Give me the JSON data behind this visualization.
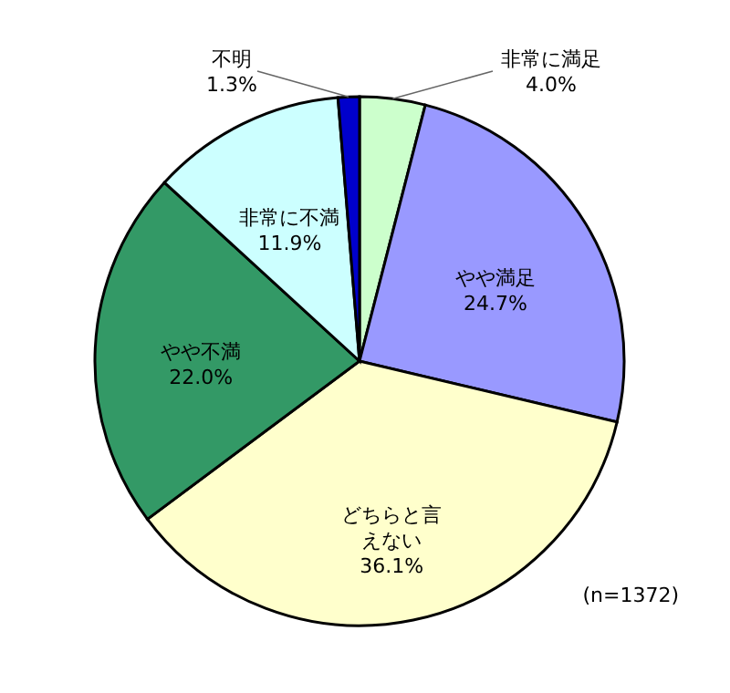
{
  "chart_data": {
    "type": "pie",
    "categories": [
      "非常に満足",
      "やや満足",
      "どちらと言えない",
      "やや不満",
      "非常に不満",
      "不明"
    ],
    "values": [
      4.0,
      24.7,
      36.1,
      22.0,
      11.9,
      1.3
    ],
    "value_labels": [
      "4.0%",
      "24.7%",
      "36.1%",
      "22.0%",
      "11.9%",
      "1.3%"
    ],
    "colors": [
      "#ccffcc",
      "#9999ff",
      "#ffffcc",
      "#339966",
      "#ccffff",
      "#0000cc"
    ],
    "annotations": [
      "(n=1372)"
    ]
  }
}
